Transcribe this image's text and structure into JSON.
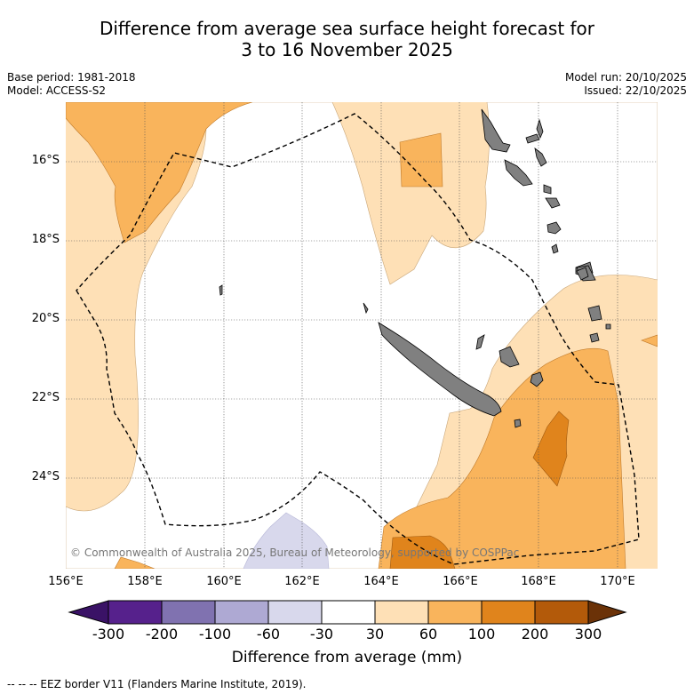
{
  "title_line1": "Difference from average sea surface height forecast for",
  "title_line2": "3 to 16 November 2025",
  "meta_left": {
    "base_period": "Base period: 1981-2018",
    "model": "Model: ACCESS-S2"
  },
  "meta_right": {
    "model_run": "Model run: 20/10/2025",
    "issued": "Issued: 22/10/2025"
  },
  "lat_labels": [
    "16°S",
    "18°S",
    "20°S",
    "22°S",
    "24°S"
  ],
  "lon_labels": [
    "156°E",
    "158°E",
    "160°E",
    "162°E",
    "164°E",
    "166°E",
    "168°E",
    "170°E"
  ],
  "copyright": "© Commonwealth of Australia 2025, Bureau of Meteorology, supported by COSPPac",
  "colorbar": {
    "tick_labels": [
      "-300",
      "-200",
      "-100",
      "-60",
      "-30",
      "30",
      "60",
      "100",
      "200",
      "300"
    ],
    "colors": [
      "#3a1266",
      "#56218c",
      "#8072b0",
      "#aea9d3",
      "#d8d8ec",
      "#ffffff",
      "#fee0b6",
      "#f9b45c",
      "#e0841c",
      "#b35a0a",
      "#6b3208"
    ],
    "label": "Difference from average (mm)"
  },
  "legend_note": "--  --  -- EEZ border V11 (Flanders Marine Institute, 2019)."
}
